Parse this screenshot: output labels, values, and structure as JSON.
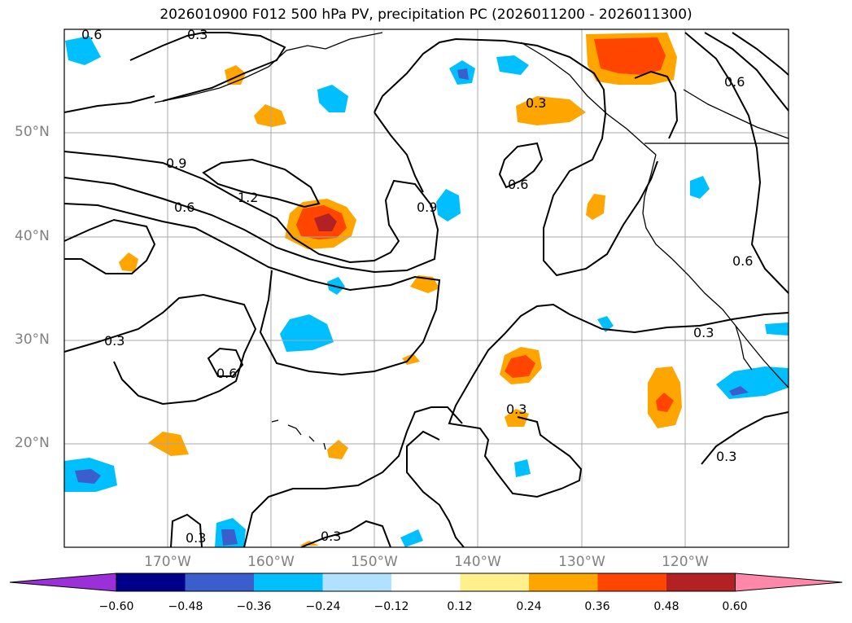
{
  "title": "2026010900 F012 500 hPa PV, precipitation PC (2026011200 - 2026011300)",
  "latitudes": [
    "50°N",
    "40°N",
    "30°N",
    "20°N"
  ],
  "longitudes": [
    "170°W",
    "160°W",
    "150°W",
    "140°W",
    "130°W",
    "120°W"
  ],
  "colorbar": {
    "ticks": [
      "−0.60",
      "−0.48",
      "−0.36",
      "−0.24",
      "−0.12",
      "0.12",
      "0.24",
      "0.36",
      "0.48",
      "0.60"
    ],
    "colors": [
      "#9b30d9",
      "#00008b",
      "#3a5fcd",
      "#00bfff",
      "#b0e2ff",
      "#ffffff",
      "#fff08c",
      "#ffa500",
      "#ff4500",
      "#b22222",
      "#ff88aa"
    ]
  },
  "contour_labels": [
    {
      "id": "c1",
      "text": "0.6"
    },
    {
      "id": "c2",
      "text": "0.3"
    },
    {
      "id": "c3",
      "text": "0.9"
    },
    {
      "id": "c4",
      "text": "1.2"
    },
    {
      "id": "c5",
      "text": "0.6"
    },
    {
      "id": "c6",
      "text": "0.9"
    },
    {
      "id": "c7",
      "text": "0.6"
    },
    {
      "id": "c8",
      "text": "0.3"
    },
    {
      "id": "c9",
      "text": "0.6"
    },
    {
      "id": "c10",
      "text": "0.3"
    },
    {
      "id": "c11",
      "text": "0.3"
    },
    {
      "id": "c12",
      "text": "0.3"
    },
    {
      "id": "c13",
      "text": "0.3"
    },
    {
      "id": "c14",
      "text": "0.3"
    },
    {
      "id": "c15",
      "text": "0.3"
    },
    {
      "id": "c16",
      "text": "0.6"
    },
    {
      "id": "c17",
      "text": "0.6"
    }
  ]
}
